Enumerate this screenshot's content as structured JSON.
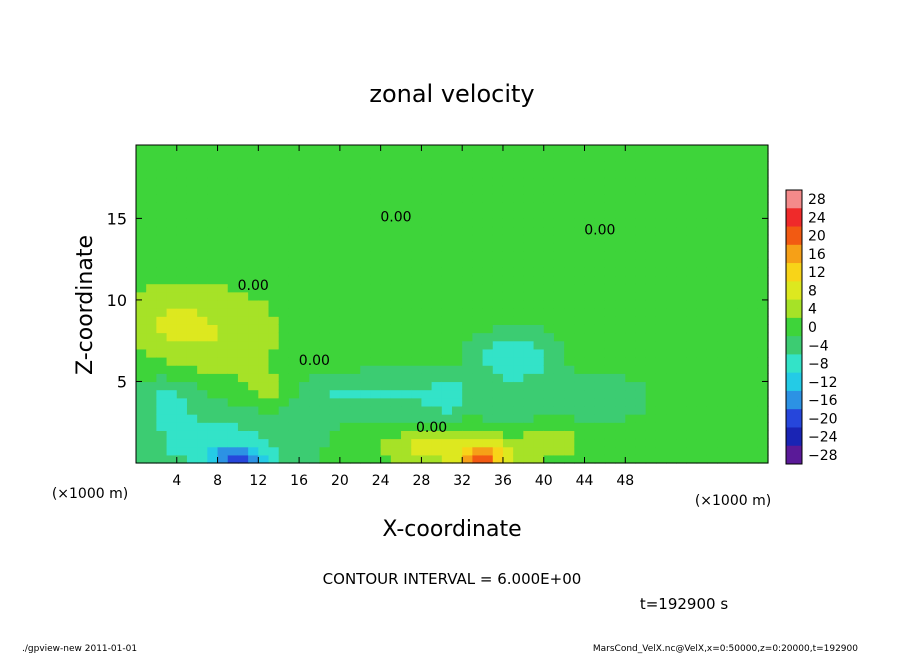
{
  "footer": {
    "left": "./gpview-new   2011-01-01",
    "right": "MarsCond_VelX.nc@VelX,x=0:50000,z=0:20000,t=192900"
  },
  "chart_data": {
    "type": "heatmap",
    "title": "zonal velocity",
    "xlabel": "X-coordinate",
    "ylabel": "Z-coordinate",
    "x_unit_label": "(×1000 m)",
    "y_unit_label": "(×1000 m)",
    "xlim": [
      0,
      62
    ],
    "ylim": [
      0,
      19.5
    ],
    "x_ticks": [
      4,
      8,
      12,
      16,
      20,
      24,
      28,
      32,
      36,
      40,
      44,
      48
    ],
    "y_ticks": [
      5,
      10,
      15
    ],
    "contour_interval_text": "CONTOUR INTERVAL = 6.000E+00",
    "time_text": "t=192900 s",
    "contour_labels": [
      {
        "text": "0.00",
        "x": 25.5,
        "z": 14.8
      },
      {
        "text": "0.00",
        "x": 11.5,
        "z": 10.6
      },
      {
        "text": "0.00",
        "x": 17.5,
        "z": 6.0
      },
      {
        "text": "0.00",
        "x": 29.0,
        "z": 1.9
      },
      {
        "text": "0.00",
        "x": 45.5,
        "z": 14.0
      }
    ],
    "colorbar": {
      "levels": [
        28,
        24,
        20,
        16,
        12,
        8,
        4,
        0,
        -4,
        -8,
        -12,
        -16,
        -20,
        -24,
        -28
      ],
      "colors": [
        "#f48a8a",
        "#ef2a2a",
        "#f25a12",
        "#f6a017",
        "#f8d418",
        "#dde81f",
        "#a6e227",
        "#3ed43a",
        "#3ccc72",
        "#33e3c8",
        "#24cbe6",
        "#2c92e4",
        "#2646db",
        "#1a24b4",
        "#5a1a98"
      ],
      "labels": [
        "28",
        "24",
        "20",
        "16",
        "12",
        "8",
        "4",
        "0",
        "−4",
        "−8",
        "−12",
        "−16",
        "−20",
        "−24",
        "−28"
      ]
    },
    "field": {
      "background": 2,
      "features": [
        {
          "x": 18,
          "z": 15,
          "rx": 20,
          "rz": 5,
          "v": 0.5
        },
        {
          "x": 7,
          "z": 8,
          "rx": 6.5,
          "rz": 2.6,
          "v": 6
        },
        {
          "x": 3,
          "z": 9,
          "rx": 3,
          "rz": 2,
          "v": 3
        },
        {
          "x": 3,
          "z": 4,
          "rx": 3.5,
          "rz": 1.6,
          "v": -6
        },
        {
          "x": 8,
          "z": 1.2,
          "rx": 9,
          "rz": 2.2,
          "v": -8
        },
        {
          "x": 10,
          "z": 0.3,
          "rx": 2.5,
          "rz": 0.7,
          "v": -14
        },
        {
          "x": 20,
          "z": 4.2,
          "rx": 5,
          "rz": 1.4,
          "v": -6
        },
        {
          "x": 27,
          "z": 4.2,
          "rx": 4,
          "rz": 1.6,
          "v": -5
        },
        {
          "x": 37,
          "z": 6.5,
          "rx": 4,
          "rz": 1.8,
          "v": -10
        },
        {
          "x": 31,
          "z": 4.0,
          "rx": 2.2,
          "rz": 1.2,
          "v": -7
        },
        {
          "x": 36,
          "z": 3.0,
          "rx": 3,
          "rz": 1.2,
          "v": -5
        },
        {
          "x": 45,
          "z": 4.0,
          "rx": 5,
          "rz": 1.5,
          "v": -6
        },
        {
          "x": 33,
          "z": 0.8,
          "rx": 4.5,
          "rz": 1.4,
          "v": 9
        },
        {
          "x": 34,
          "z": 0.3,
          "rx": 2,
          "rz": 0.6,
          "v": 12
        },
        {
          "x": 27,
          "z": 1.0,
          "rx": 3,
          "rz": 1,
          "v": 5
        },
        {
          "x": 41,
          "z": 1.5,
          "rx": 3,
          "rz": 1.2,
          "v": 4
        },
        {
          "x": 13,
          "z": 4.5,
          "rx": 2.5,
          "rz": 1.2,
          "v": 4
        },
        {
          "x": 24,
          "z": 8.5,
          "rx": 5,
          "rz": 2,
          "v": -1
        },
        {
          "x": 36,
          "z": 10,
          "rx": 8,
          "rz": 3,
          "v": 1
        }
      ]
    }
  }
}
